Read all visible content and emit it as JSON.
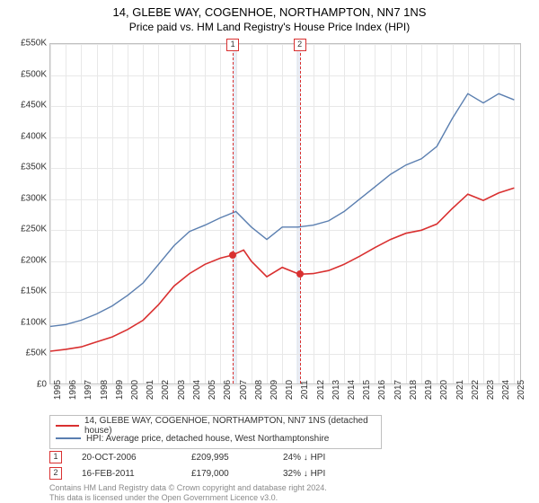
{
  "title": "14, GLEBE WAY, COGENHOE, NORTHAMPTON, NN7 1NS",
  "subtitle": "Price paid vs. HM Land Registry's House Price Index (HPI)",
  "chart": {
    "type": "line",
    "xlim": [
      1995,
      2025.5
    ],
    "ylim": [
      0,
      550000
    ],
    "ytick_step": 50000,
    "ytick_format": "£K",
    "x_ticks": [
      1995,
      1996,
      1997,
      1998,
      1999,
      2000,
      2001,
      2002,
      2003,
      2004,
      2005,
      2006,
      2007,
      2008,
      2009,
      2010,
      2011,
      2012,
      2013,
      2014,
      2015,
      2016,
      2017,
      2018,
      2019,
      2020,
      2021,
      2022,
      2023,
      2024,
      2025
    ],
    "background_color": "#ffffff",
    "grid_color": "#e8e8e8",
    "border_color": "#c0c0c0",
    "shade_color": "#e8eef8",
    "shaded_spans": [
      [
        2006.8,
        2007.05
      ],
      [
        2010.9,
        2011.2
      ]
    ],
    "dashed_lines_x": [
      2006.8,
      2011.13
    ],
    "marker_labels": [
      "1",
      "2"
    ],
    "markers_x": [
      2006.8,
      2011.13
    ],
    "series": [
      {
        "name": "14, GLEBE WAY, COGENHOE, NORTHAMPTON, NN7 1NS (detached house)",
        "color": "#d93030",
        "width": 1.6,
        "x": [
          1995,
          1996,
          1997,
          1998,
          1999,
          2000,
          2001,
          2002,
          2003,
          2004,
          2005,
          2006,
          2006.8,
          2007.5,
          2008,
          2009,
          2010,
          2011,
          2011.13,
          2012,
          2013,
          2014,
          2015,
          2016,
          2017,
          2018,
          2019,
          2020,
          2021,
          2022,
          2023,
          2024,
          2025
        ],
        "y": [
          55000,
          58000,
          62000,
          70000,
          78000,
          90000,
          105000,
          130000,
          160000,
          180000,
          195000,
          205000,
          209995,
          218000,
          200000,
          175000,
          190000,
          180000,
          179000,
          180000,
          185000,
          195000,
          208000,
          222000,
          235000,
          245000,
          250000,
          260000,
          285000,
          308000,
          298000,
          310000,
          318000
        ]
      },
      {
        "name": "HPI: Average price, detached house, West Northamptonshire",
        "color": "#5b7fb0",
        "width": 1.4,
        "x": [
          1995,
          1996,
          1997,
          1998,
          1999,
          2000,
          2001,
          2002,
          2003,
          2004,
          2005,
          2006,
          2007,
          2008,
          2009,
          2010,
          2011,
          2012,
          2013,
          2014,
          2015,
          2016,
          2017,
          2018,
          2019,
          2020,
          2021,
          2022,
          2023,
          2024,
          2025
        ],
        "y": [
          95000,
          98000,
          105000,
          115000,
          128000,
          145000,
          165000,
          195000,
          225000,
          248000,
          258000,
          270000,
          280000,
          255000,
          235000,
          255000,
          255000,
          258000,
          265000,
          280000,
          300000,
          320000,
          340000,
          355000,
          365000,
          385000,
          430000,
          470000,
          455000,
          470000,
          460000
        ]
      }
    ],
    "sale_points": [
      {
        "x": 2006.8,
        "y": 209995
      },
      {
        "x": 2011.13,
        "y": 179000
      }
    ]
  },
  "legend": {
    "rows": [
      {
        "color": "#d93030",
        "label": "14, GLEBE WAY, COGENHOE, NORTHAMPTON, NN7 1NS (detached house)"
      },
      {
        "color": "#5b7fb0",
        "label": "HPI: Average price, detached house, West Northamptonshire"
      }
    ]
  },
  "annotations": [
    {
      "n": "1",
      "date": "20-OCT-2006",
      "price": "£209,995",
      "delta": "24% ↓ HPI"
    },
    {
      "n": "2",
      "date": "16-FEB-2011",
      "price": "£179,000",
      "delta": "32% ↓ HPI"
    }
  ],
  "footer_line1": "Contains HM Land Registry data © Crown copyright and database right 2024.",
  "footer_line2": "This data is licensed under the Open Government Licence v3.0."
}
